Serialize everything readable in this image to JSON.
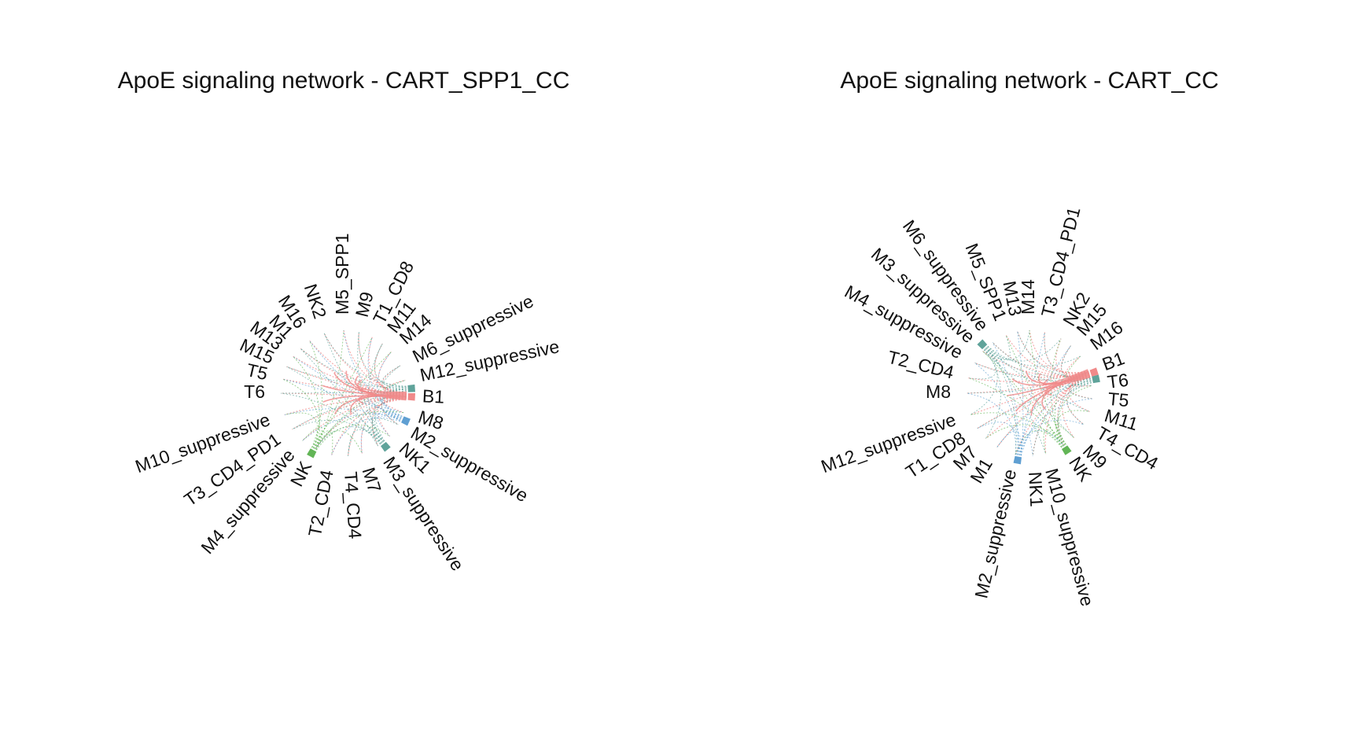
{
  "colors": {
    "red": "#f08a8a",
    "blue": "#5f9fd2",
    "teal": "#5fa39a",
    "green": "#62b556"
  },
  "panels": [
    {
      "title": "ApoE signaling network - CART_SPP1_CC",
      "nodes": [
        {
          "label": "M5_SPP1",
          "angle": -90
        },
        {
          "label": "M9",
          "angle": -76
        },
        {
          "label": "T1_CD8",
          "angle": -63
        },
        {
          "label": "M11",
          "angle": -52
        },
        {
          "label": "M14",
          "angle": -41
        },
        {
          "label": "M6_suppressive",
          "angle": -26
        },
        {
          "label": "M12_suppressive",
          "angle": -12
        },
        {
          "label": "B1",
          "angle": 3
        },
        {
          "label": "M8",
          "angle": 18
        },
        {
          "label": "M2_suppressive",
          "angle": 30
        },
        {
          "label": "NK1",
          "angle": 43
        },
        {
          "label": "M3_suppressive",
          "angle": 57
        },
        {
          "label": "M7",
          "angle": 73
        },
        {
          "label": "T4_CD4",
          "angle": 86
        },
        {
          "label": "T2_CD4",
          "angle": 101
        },
        {
          "label": "NK",
          "angle": 117
        },
        {
          "label": "M4_suppressive",
          "angle": 131
        },
        {
          "label": "T3_CD4_PD1",
          "angle": 145
        },
        {
          "label": "M10_suppressive",
          "angle": 160
        },
        {
          "label": "T6",
          "angle": 180
        },
        {
          "label": "T5",
          "angle": 193
        },
        {
          "label": "M15",
          "angle": 205
        },
        {
          "label": "M13",
          "angle": 216
        },
        {
          "label": "M1",
          "angle": 226
        },
        {
          "label": "M16",
          "angle": 237
        },
        {
          "label": "NK2",
          "angle": 252
        }
      ],
      "blocks": [
        {
          "angle": 3,
          "color": "red"
        },
        {
          "angle": -4,
          "color": "teal"
        },
        {
          "angle": 24,
          "color": "blue"
        },
        {
          "angle": 52,
          "color": "teal"
        },
        {
          "angle": 118,
          "color": "green"
        }
      ]
    },
    {
      "title": "ApoE signaling network - CART_CC",
      "nodes": [
        {
          "label": "M14",
          "angle": -90
        },
        {
          "label": "T3_CD4_PD1",
          "angle": -76
        },
        {
          "label": "NK2",
          "angle": -60
        },
        {
          "label": "M15",
          "angle": -49
        },
        {
          "label": "M16",
          "angle": -36
        },
        {
          "label": "B1",
          "angle": -20
        },
        {
          "label": "T6",
          "angle": -7
        },
        {
          "label": "T5",
          "angle": 5
        },
        {
          "label": "M11",
          "angle": 17
        },
        {
          "label": "T4_CD4",
          "angle": 30
        },
        {
          "label": "M9",
          "angle": 45
        },
        {
          "label": "NK",
          "angle": 57
        },
        {
          "label": "M10_suppressive",
          "angle": 75
        },
        {
          "label": "NK1",
          "angle": 87
        },
        {
          "label": "M2_suppressive",
          "angle": 103
        },
        {
          "label": "M1",
          "angle": 121
        },
        {
          "label": "M7",
          "angle": 134
        },
        {
          "label": "T1_CD8",
          "angle": 146
        },
        {
          "label": "M12_suppressive",
          "angle": 160
        },
        {
          "label": "M8",
          "angle": 180
        },
        {
          "label": "T2_CD4",
          "angle": 194
        },
        {
          "label": "M4_suppressive",
          "angle": 209
        },
        {
          "label": "M3_suppressive",
          "angle": 222
        },
        {
          "label": "M6_suppressive",
          "angle": 234
        },
        {
          "label": "M5_SPP1",
          "angle": 248
        },
        {
          "label": "M13",
          "angle": 259
        }
      ],
      "blocks": [
        {
          "angle": -18,
          "color": "red"
        },
        {
          "angle": -12,
          "color": "teal"
        },
        {
          "angle": 57,
          "color": "green"
        },
        {
          "angle": 100,
          "color": "blue"
        },
        {
          "angle": 226,
          "color": "teal"
        }
      ]
    }
  ]
}
